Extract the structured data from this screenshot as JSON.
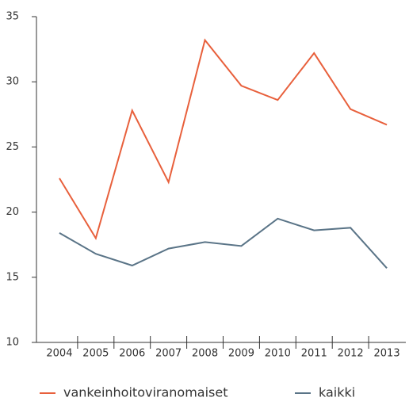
{
  "chart_data": {
    "type": "line",
    "categories": [
      "2004",
      "2005",
      "2006",
      "2007",
      "2008",
      "2009",
      "2010",
      "2011",
      "2012",
      "2013"
    ],
    "series": [
      {
        "name": "vankeinhoitoviranomaiset",
        "color": "#e8603c",
        "values": [
          22.6,
          18.0,
          27.8,
          22.3,
          33.2,
          29.7,
          28.6,
          32.2,
          27.9,
          26.7
        ]
      },
      {
        "name": "kaikki",
        "color": "#5a7487",
        "values": [
          18.4,
          16.8,
          15.9,
          17.2,
          17.7,
          17.4,
          19.5,
          18.6,
          18.8,
          15.7
        ]
      }
    ],
    "ylim": [
      10,
      35
    ],
    "yticks": [
      10,
      15,
      20,
      25,
      30,
      35
    ]
  }
}
